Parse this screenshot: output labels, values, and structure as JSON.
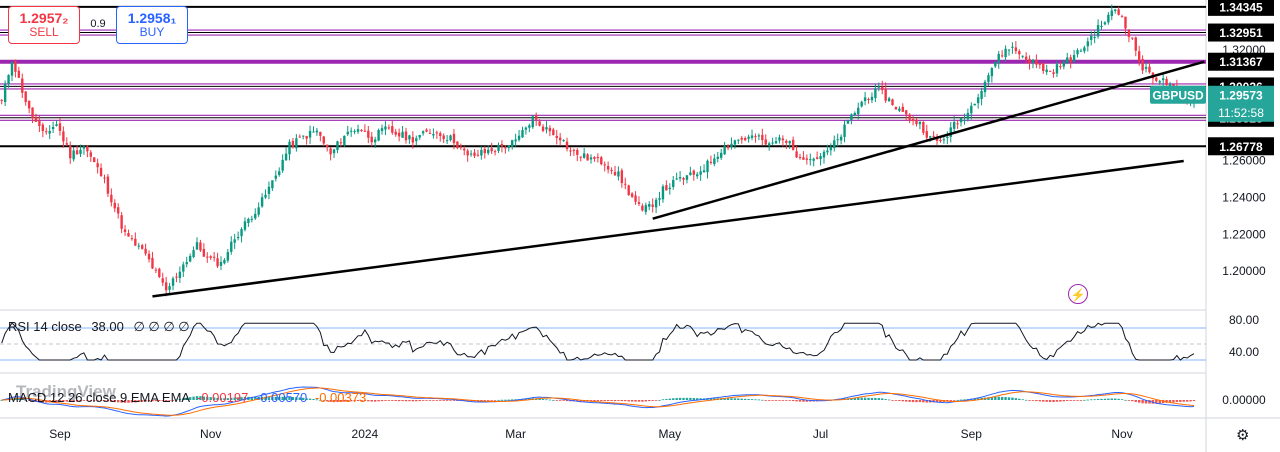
{
  "trade": {
    "sell_price": "1.2957₂",
    "sell_label": "SELL",
    "spread": "0.9",
    "buy_price": "1.2958₁",
    "buy_label": "BUY"
  },
  "watermark": "TradingView",
  "icons": {
    "settings": "gear-icon",
    "bolt": "lightning-icon"
  },
  "colors": {
    "up": "#089981",
    "down": "#f23645",
    "level_purple": "#9c27b0",
    "macd": "#2962ff",
    "signal": "#ff6d00",
    "rsi": "#131722",
    "symbol_badge": "#26a69a"
  },
  "rsi": {
    "label": "RSI 14 close",
    "value": "38.00",
    "extra": "∅ ∅ ∅ ∅",
    "ticks": [
      "80.00",
      "40.00"
    ],
    "bands": [
      70,
      30
    ]
  },
  "macd": {
    "label": "MACD 12 26 close 9 EMA EMA",
    "hist_value": "-0.00197",
    "macd_value": "-0.00570",
    "signal_value": "-0.00373",
    "ticks": [
      "0.00000"
    ]
  },
  "chart_data": {
    "type": "candlestick",
    "symbol": "GBPUSD",
    "last_price": "1.29573",
    "countdown": "11:52:58",
    "ylim": [
      1.18,
      1.345
    ],
    "y_ticks": [
      "1.32000",
      "1.26000",
      "1.24000",
      "1.22000",
      "1.20000"
    ],
    "x_ticks": [
      {
        "label": "Sep",
        "i": 17
      },
      {
        "label": "Nov",
        "i": 61
      },
      {
        "label": "2024",
        "i": 106
      },
      {
        "label": "Mar",
        "i": 150
      },
      {
        "label": "May",
        "i": 195
      },
      {
        "label": "Jul",
        "i": 239
      },
      {
        "label": "Sep",
        "i": 283
      },
      {
        "label": "Nov",
        "i": 327
      }
    ],
    "levels": [
      {
        "value": 1.34345,
        "label": "1.34345",
        "style": "black",
        "width": 2
      },
      {
        "value": 1.32951,
        "label": "1.32951",
        "style": "purple",
        "width": 2
      },
      {
        "value": 1.31367,
        "label": "1.31367",
        "style": "purple",
        "width": 4
      },
      {
        "value": 1.30026,
        "label": "1.30026",
        "style": "purple",
        "width": 2
      },
      {
        "value": 1.28323,
        "label": "1.28323",
        "style": "purple",
        "width": 2
      },
      {
        "value": 1.26778,
        "label": "1.26778",
        "style": "black",
        "width": 2
      }
    ],
    "trendlines": [
      {
        "x1": 44,
        "y1": 1.1863,
        "x2": 345,
        "y2": 1.2598
      },
      {
        "x1": 190,
        "y1": 1.2285,
        "x2": 351,
        "y2": 1.3137
      }
    ],
    "anchors": [
      [
        0,
        1.292
      ],
      [
        3,
        1.315
      ],
      [
        8,
        1.287
      ],
      [
        12,
        1.274
      ],
      [
        16,
        1.28
      ],
      [
        20,
        1.263
      ],
      [
        24,
        1.268
      ],
      [
        30,
        1.249
      ],
      [
        36,
        1.22
      ],
      [
        42,
        1.209
      ],
      [
        48,
        1.189
      ],
      [
        52,
        1.201
      ],
      [
        57,
        1.214
      ],
      [
        60,
        1.207
      ],
      [
        64,
        1.204
      ],
      [
        68,
        1.218
      ],
      [
        72,
        1.228
      ],
      [
        76,
        1.238
      ],
      [
        80,
        1.252
      ],
      [
        84,
        1.268
      ],
      [
        88,
        1.273
      ],
      [
        92,
        1.276
      ],
      [
        96,
        1.263
      ],
      [
        100,
        1.274
      ],
      [
        104,
        1.278
      ],
      [
        108,
        1.272
      ],
      [
        112,
        1.277
      ],
      [
        116,
        1.274
      ],
      [
        120,
        1.272
      ],
      [
        126,
        1.276
      ],
      [
        132,
        1.271
      ],
      [
        136,
        1.262
      ],
      [
        140,
        1.264
      ],
      [
        145,
        1.267
      ],
      [
        150,
        1.27
      ],
      [
        155,
        1.283
      ],
      [
        158,
        1.278
      ],
      [
        163,
        1.273
      ],
      [
        166,
        1.265
      ],
      [
        170,
        1.262
      ],
      [
        176,
        1.259
      ],
      [
        180,
        1.252
      ],
      [
        184,
        1.24
      ],
      [
        187,
        1.232
      ],
      [
        190,
        1.237
      ],
      [
        193,
        1.244
      ],
      [
        198,
        1.25
      ],
      [
        202,
        1.252
      ],
      [
        206,
        1.258
      ],
      [
        210,
        1.266
      ],
      [
        214,
        1.271
      ],
      [
        220,
        1.273
      ],
      [
        224,
        1.268
      ],
      [
        228,
        1.273
      ],
      [
        232,
        1.264
      ],
      [
        236,
        1.261
      ],
      [
        240,
        1.263
      ],
      [
        244,
        1.271
      ],
      [
        248,
        1.284
      ],
      [
        252,
        1.294
      ],
      [
        256,
        1.298
      ],
      [
        260,
        1.291
      ],
      [
        264,
        1.284
      ],
      [
        268,
        1.28
      ],
      [
        271,
        1.272
      ],
      [
        274,
        1.27
      ],
      [
        278,
        1.279
      ],
      [
        282,
        1.286
      ],
      [
        286,
        1.3
      ],
      [
        290,
        1.314
      ],
      [
        294,
        1.322
      ],
      [
        298,
        1.317
      ],
      [
        302,
        1.312
      ],
      [
        306,
        1.308
      ],
      [
        310,
        1.313
      ],
      [
        314,
        1.318
      ],
      [
        318,
        1.327
      ],
      [
        322,
        1.336
      ],
      [
        325,
        1.342
      ],
      [
        327,
        1.338
      ],
      [
        330,
        1.325
      ],
      [
        333,
        1.31
      ],
      [
        337,
        1.305
      ],
      [
        340,
        1.302
      ],
      [
        343,
        1.296
      ],
      [
        346,
        1.293
      ],
      [
        348,
        1.2957
      ]
    ]
  }
}
